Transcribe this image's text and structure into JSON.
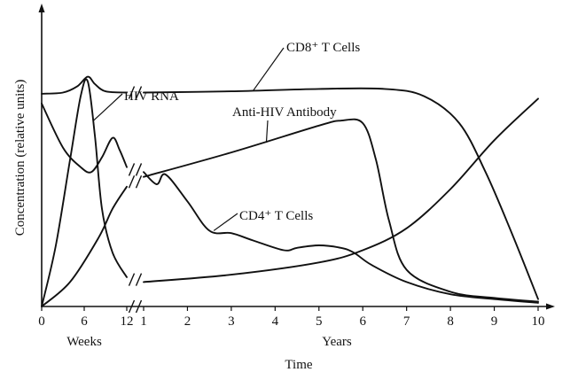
{
  "chart_data": {
    "type": "line",
    "title": "",
    "xlabel": "Time",
    "ylabel": "Concentration (relative units)",
    "x_segments": [
      {
        "label": "Weeks",
        "unit": "weeks",
        "range": [
          0,
          12
        ],
        "ticks": [
          "0",
          "6",
          "12"
        ]
      },
      {
        "label": "Years",
        "unit": "years",
        "range": [
          1,
          10
        ],
        "ticks": [
          "1",
          "2",
          "3",
          "4",
          "5",
          "6",
          "7",
          "8",
          "9",
          "10"
        ]
      }
    ],
    "ylim": [
      0,
      100
    ],
    "grid": false,
    "legend": "none",
    "series": [
      {
        "name": "CD8⁺ T Cells",
        "weeks": [
          [
            0,
            87
          ],
          [
            3,
            87.5
          ],
          [
            5,
            90
          ],
          [
            6.5,
            94
          ],
          [
            7.5,
            91
          ],
          [
            9,
            88
          ],
          [
            12,
            87.5
          ]
        ],
        "years": [
          [
            1,
            87.5
          ],
          [
            3,
            88
          ],
          [
            5,
            89
          ],
          [
            6.5,
            89
          ],
          [
            7.4,
            86
          ],
          [
            8.2,
            75
          ],
          [
            8.8,
            55
          ],
          [
            9.4,
            30
          ],
          [
            10,
            3
          ]
        ]
      },
      {
        "name": "HIV RNA",
        "weeks": [
          [
            0,
            0
          ],
          [
            2,
            25
          ],
          [
            4,
            60
          ],
          [
            5.5,
            86
          ],
          [
            6.5,
            92
          ],
          [
            7.5,
            70
          ],
          [
            8.5,
            40
          ],
          [
            10,
            22
          ],
          [
            12,
            12
          ]
        ],
        "years": [
          [
            1,
            10
          ],
          [
            3,
            13
          ],
          [
            5,
            18
          ],
          [
            6,
            23
          ],
          [
            7,
            32
          ],
          [
            8,
            48
          ],
          [
            9,
            68
          ],
          [
            10,
            85
          ]
        ]
      },
      {
        "name": "Anti-HIV Antibody",
        "weeks": [
          [
            0,
            0
          ],
          [
            4,
            10
          ],
          [
            8,
            28
          ],
          [
            10,
            40
          ],
          [
            12,
            49
          ]
        ],
        "years": [
          [
            1,
            53
          ],
          [
            3,
            63
          ],
          [
            5,
            74
          ],
          [
            5.5,
            76
          ],
          [
            6,
            75
          ],
          [
            6.3,
            60
          ],
          [
            6.6,
            35
          ],
          [
            7,
            15
          ],
          [
            8,
            6
          ],
          [
            9,
            3.5
          ],
          [
            10,
            2
          ]
        ]
      },
      {
        "name": "CD4⁺ T Cells",
        "weeks": [
          [
            0,
            83
          ],
          [
            3,
            65
          ],
          [
            5.5,
            57
          ],
          [
            7,
            55
          ],
          [
            8.5,
            61
          ],
          [
            10,
            69
          ],
          [
            11,
            64
          ],
          [
            12,
            57
          ]
        ],
        "years": [
          [
            1,
            55
          ],
          [
            1.3,
            50
          ],
          [
            1.5,
            54
          ],
          [
            2,
            43
          ],
          [
            2.5,
            31
          ],
          [
            3,
            30
          ],
          [
            3.5,
            27
          ],
          [
            4.2,
            23
          ],
          [
            4.5,
            24
          ],
          [
            5,
            25
          ],
          [
            5.5,
            24
          ],
          [
            5.8,
            22
          ],
          [
            6.2,
            17
          ],
          [
            7,
            10
          ],
          [
            8,
            5
          ],
          [
            9,
            3
          ],
          [
            10,
            1.5
          ]
        ]
      }
    ],
    "annotations": [
      {
        "text": "HIV RNA"
      },
      {
        "text": "CD8⁺ T Cells"
      },
      {
        "text": "Anti-HIV Antibody"
      },
      {
        "text": "CD4⁺ T Cells"
      }
    ]
  }
}
